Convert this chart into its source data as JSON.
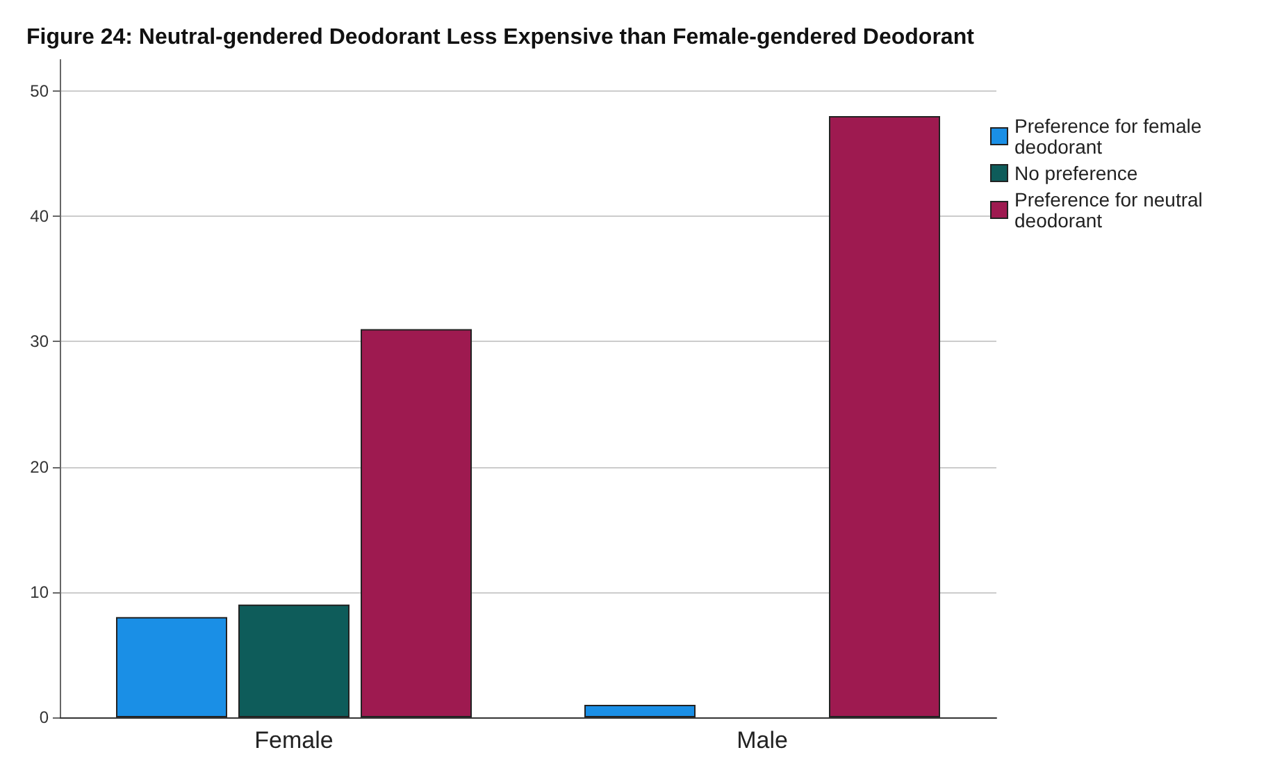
{
  "chart_data": {
    "type": "bar",
    "title": "Figure 24: Neutral-gendered Deodorant Less Expensive than Female-gendered Deodorant",
    "categories": [
      "Female",
      "Male"
    ],
    "series": [
      {
        "name": "Preference for female deodorant",
        "color": "#1a8fe6",
        "values": [
          8,
          1
        ]
      },
      {
        "name": "No preference",
        "color": "#0e5c5a",
        "values": [
          9,
          0
        ]
      },
      {
        "name": "Preference for neutral deodorant",
        "color": "#9e1a50",
        "values": [
          31,
          48
        ]
      }
    ],
    "ylim": [
      0,
      52.5
    ],
    "yticks": [
      0,
      10,
      20,
      30,
      40,
      50
    ],
    "grid": "y",
    "legend": "top right"
  }
}
